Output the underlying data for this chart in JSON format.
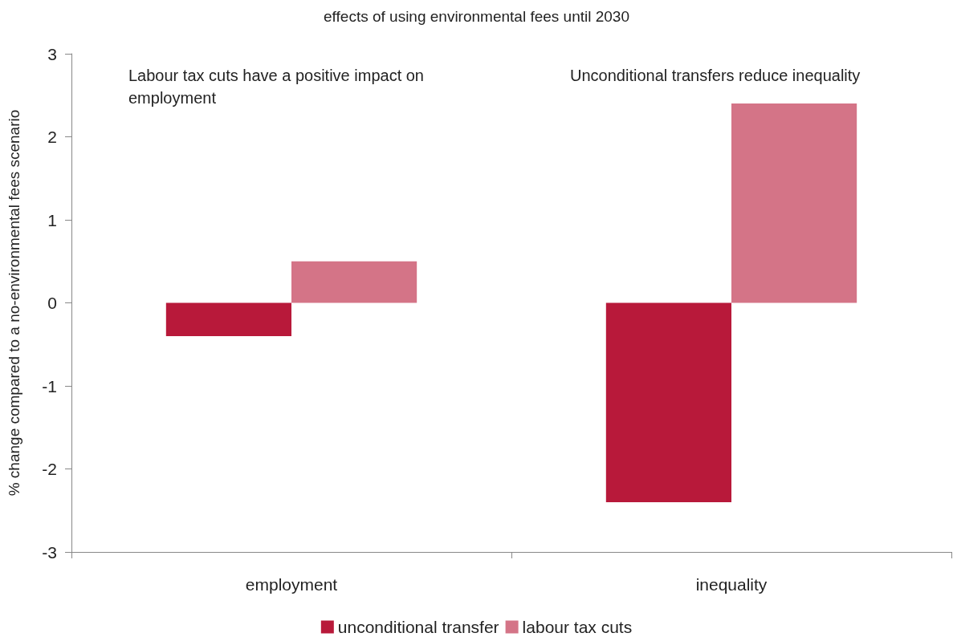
{
  "chart_data": {
    "type": "bar",
    "title": "effects of using environmental fees until 2030",
    "ylabel": "% change compared to a no-environmental fees scenario",
    "categories": [
      "employment",
      "inequality"
    ],
    "series": [
      {
        "name": "unconditional transfer",
        "color": "#b8193a",
        "values": [
          -0.4,
          -2.4
        ]
      },
      {
        "name": "labour tax cuts",
        "color": "#d47487",
        "values": [
          0.5,
          2.4
        ]
      }
    ],
    "ylim": [
      -3,
      3
    ],
    "yticks": [
      -3,
      -2,
      -1,
      0,
      1,
      2,
      3
    ],
    "annotations": [
      "Labour tax cuts have a positive impact on employment",
      "Unconditional transfers reduce inequality"
    ],
    "grid": false,
    "legend": "bottom"
  }
}
